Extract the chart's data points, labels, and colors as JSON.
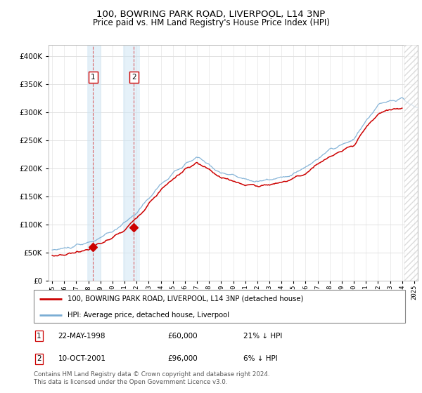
{
  "title": "100, BOWRING PARK ROAD, LIVERPOOL, L14 3NP",
  "subtitle": "Price paid vs. HM Land Registry's House Price Index (HPI)",
  "legend_line1": "100, BOWRING PARK ROAD, LIVERPOOL, L14 3NP (detached house)",
  "legend_line2": "HPI: Average price, detached house, Liverpool",
  "footnote": "Contains HM Land Registry data © Crown copyright and database right 2024.\nThis data is licensed under the Open Government Licence v3.0.",
  "transaction1_date": "22-MAY-1998",
  "transaction1_price": "£60,000",
  "transaction1_hpi": "21% ↓ HPI",
  "transaction2_date": "10-OCT-2001",
  "transaction2_price": "£96,000",
  "transaction2_hpi": "6% ↓ HPI",
  "price_color": "#cc0000",
  "hpi_color": "#7aadd4",
  "sale1_x": 1998.38,
  "sale1_y": 60000,
  "sale2_x": 2001.78,
  "sale2_y": 96000,
  "shade1_x_start": 1997.9,
  "shade1_x_end": 1999.1,
  "shade2_x_start": 2000.9,
  "shade2_x_end": 2002.3,
  "hatch_x_start": 2024.17,
  "hatch_x_end": 2025.3,
  "ylim": [
    0,
    420000
  ],
  "yticks": [
    0,
    50000,
    100000,
    150000,
    200000,
    250000,
    300000,
    350000,
    400000
  ],
  "xlim": [
    1994.7,
    2025.3
  ]
}
